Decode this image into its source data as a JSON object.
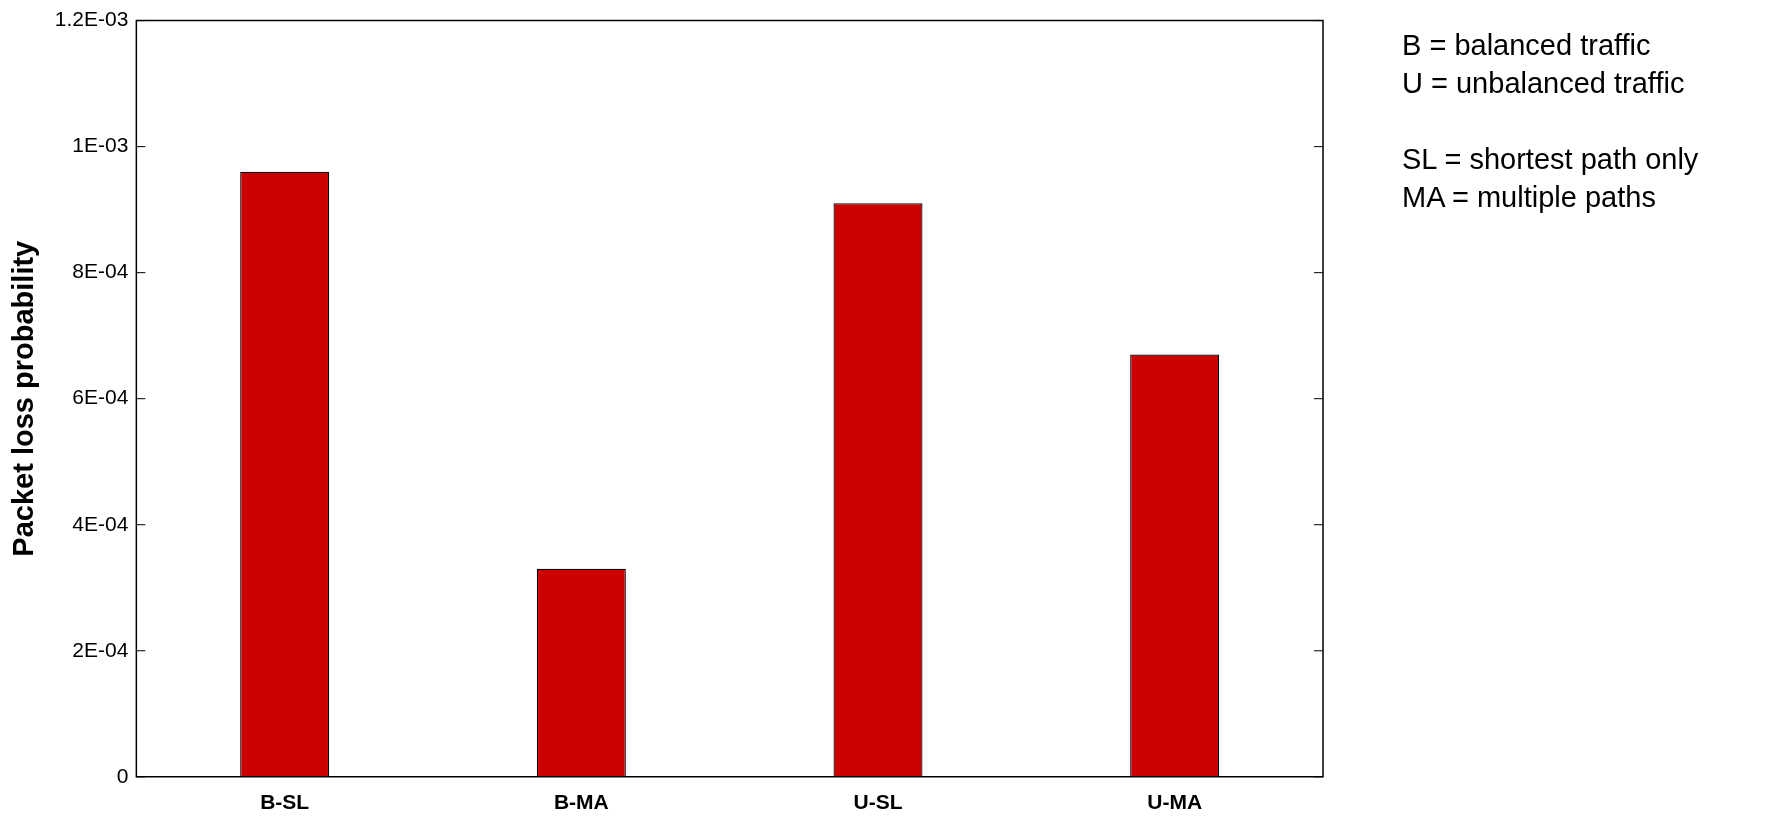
{
  "chart_data": {
    "type": "bar",
    "ylabel": "Packet loss probability",
    "categories": [
      "B-SL",
      "B-MA",
      "U-SL",
      "U-MA"
    ],
    "values": [
      0.00096,
      0.00033,
      0.00091,
      0.00067
    ],
    "color": "#cc0000",
    "ylim": [
      0,
      0.0012
    ],
    "yticks": [
      0,
      {
        "value": 0.0002,
        "label": "2E-04"
      },
      {
        "value": 0.0004,
        "label": "4E-04"
      },
      {
        "value": 0.0006,
        "label": "6E-04"
      },
      {
        "value": 0.0008,
        "label": "8E-04"
      },
      {
        "value": 0.001,
        "label": "1E-03"
      },
      {
        "value": 0.0012,
        "label": "1.2E-03"
      }
    ],
    "grid": false,
    "legend": false,
    "annotations": [
      "B = balanced traffic",
      "U = unbalanced traffic",
      "SL = shortest path only",
      "MA = multiple paths"
    ]
  }
}
